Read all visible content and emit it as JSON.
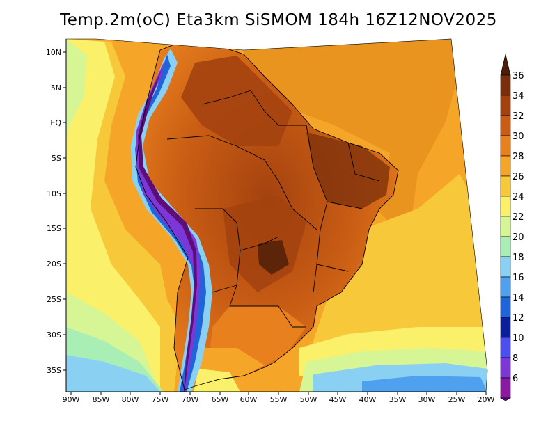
{
  "title": "Temp.2m(oC) Eta3km SiSMOM 184h 16Z12NOV2025",
  "map": {
    "lat_labels": [
      "10N",
      "5N",
      "EQ",
      "5S",
      "10S",
      "15S",
      "20S",
      "25S",
      "30S",
      "35S"
    ],
    "lon_labels": [
      "90W",
      "85W",
      "80W",
      "75W",
      "70W",
      "65W",
      "60W",
      "55W",
      "50W",
      "45W",
      "40W",
      "35W",
      "30W",
      "25W",
      "20W"
    ]
  },
  "colorbar": {
    "labels": [
      "36",
      "34",
      "32",
      "30",
      "28",
      "26",
      "24",
      "22",
      "20",
      "18",
      "16",
      "14",
      "12",
      "10",
      "8",
      "6"
    ],
    "colors": [
      "#4a1e08",
      "#7a2f0c",
      "#a4420f",
      "#c95d14",
      "#e8801e",
      "#f5a629",
      "#f7c93a",
      "#faf06a",
      "#d6f594",
      "#a9eeb4",
      "#8ad0f2",
      "#4fa1f0",
      "#1f64d8",
      "#0b1f9a",
      "#4e4ef0",
      "#7c37d6",
      "#8a1a9f",
      "#5c0d7a"
    ]
  }
}
